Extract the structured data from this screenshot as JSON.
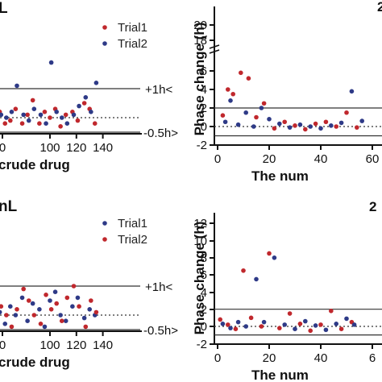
{
  "chart_data": [
    {
      "type": "scatter",
      "panel": "top-left",
      "title_fragment": "L",
      "xlabel": "crude drug",
      "x_ticks": [
        "0",
        "100",
        "120",
        "140"
      ],
      "reference_labels": [
        "+1h<",
        "-0.5h>"
      ],
      "legend": [
        "Trial1",
        "Trial2"
      ],
      "colors": {
        "Trial1": "#c0282d",
        "Trial2": "#2e3a87"
      },
      "series": [
        {
          "name": "Trial1",
          "x": [
            62,
            66,
            70,
            74,
            79,
            83,
            87,
            92,
            96,
            100,
            104,
            108,
            112,
            117,
            121,
            126,
            130,
            134
          ],
          "y": [
            0.2,
            -0.2,
            -0.1,
            0.3,
            -0.2,
            0.1,
            0.6,
            -0.2,
            0.2,
            0.0,
            0.3,
            -0.3,
            0.1,
            0.2,
            -0.1,
            0.5,
            0.3,
            -0.2
          ]
        },
        {
          "name": "Trial2",
          "x": [
            63,
            67,
            71,
            75,
            80,
            84,
            88,
            93,
            97,
            101,
            105,
            109,
            113,
            118,
            122,
            127,
            131,
            135
          ],
          "y": [
            0.1,
            0.0,
            0.2,
            1.1,
            0.1,
            -0.1,
            0.3,
            0.1,
            -0.2,
            1.9,
            0.2,
            0.0,
            -0.2,
            0.1,
            0.4,
            0.7,
            0.2,
            1.2
          ]
        }
      ]
    },
    {
      "type": "scatter",
      "panel": "top-right",
      "ylabel": "Phase change (h)",
      "xlabel": "The num",
      "y_ticks": [
        "-2",
        "0",
        "2",
        "4",
        "6",
        "18",
        "20"
      ],
      "x_ticks": [
        "0",
        "20",
        "40",
        "60"
      ],
      "series": [
        {
          "name": "Trial1",
          "x": [
            2,
            4,
            6,
            9,
            12,
            15,
            18,
            22,
            26,
            30,
            34,
            38,
            42,
            46,
            50,
            54
          ],
          "y": [
            1.2,
            4.0,
            3.5,
            5.8,
            5.2,
            1.0,
            2.5,
            -0.2,
            0.5,
            0.1,
            -0.3,
            0.3,
            0.5,
            0.0,
            1.5,
            -0.1
          ]
        },
        {
          "name": "Trial2",
          "x": [
            3,
            5,
            8,
            11,
            14,
            17,
            20,
            24,
            28,
            32,
            36,
            40,
            44,
            48,
            52,
            56
          ],
          "y": [
            0.5,
            2.8,
            0.2,
            1.5,
            0.0,
            2.0,
            0.8,
            0.3,
            -0.1,
            0.2,
            0.0,
            -0.2,
            0.1,
            0.4,
            3.8,
            0.6
          ]
        }
      ]
    },
    {
      "type": "scatter",
      "panel": "bottom-left",
      "title_fragment": "nL",
      "xlabel": "crude drug",
      "x_ticks": [
        "0",
        "100",
        "120",
        "140"
      ],
      "reference_labels": [
        "+1h<",
        "-0.5h>"
      ],
      "legend": [
        "Trial1",
        "Trial2"
      ],
      "colors": {
        "Trial1": "#2e3a87",
        "Trial2": "#c0282d"
      },
      "series": [
        {
          "name": "Trial1",
          "x": [
            62,
            66,
            70,
            74,
            79,
            83,
            87,
            92,
            96,
            100,
            104,
            108,
            112,
            117,
            121,
            126,
            130,
            134
          ],
          "y": [
            0.1,
            -0.3,
            0.3,
            0.0,
            0.6,
            -0.2,
            0.4,
            0.2,
            -0.4,
            0.5,
            0.8,
            0.0,
            -0.2,
            0.3,
            0.6,
            -0.1,
            0.2,
            0.0
          ]
        },
        {
          "name": "Trial2",
          "x": [
            63,
            67,
            71,
            75,
            80,
            84,
            88,
            93,
            97,
            101,
            105,
            109,
            113,
            118,
            122,
            127,
            131,
            135
          ],
          "y": [
            0.3,
            0.0,
            -0.4,
            0.2,
            0.9,
            0.5,
            0.0,
            -0.3,
            0.7,
            0.2,
            0.4,
            -0.2,
            0.6,
            1.0,
            0.3,
            -0.4,
            0.5,
            0.1
          ]
        }
      ]
    },
    {
      "type": "scatter",
      "panel": "bottom-right",
      "ylabel": "Phase change (h)",
      "xlabel": "The num",
      "y_ticks": [
        "-2",
        "0",
        "2",
        "4",
        "6",
        "8",
        "10",
        "12"
      ],
      "x_ticks": [
        "0",
        "20",
        "40",
        "6"
      ],
      "series": [
        {
          "name": "Trial1",
          "x": [
            1,
            4,
            7,
            10,
            13,
            17,
            20,
            24,
            28,
            32,
            36,
            40,
            44,
            48,
            52
          ],
          "y": [
            0.8,
            0.2,
            -0.3,
            6.5,
            1.0,
            0.0,
            8.5,
            -0.2,
            1.5,
            0.3,
            -0.5,
            0.2,
            1.8,
            -0.3,
            0.5
          ]
        },
        {
          "name": "Trial2",
          "x": [
            2,
            5,
            8,
            11,
            15,
            18,
            22,
            26,
            30,
            34,
            38,
            42,
            46,
            50,
            53
          ],
          "y": [
            0.3,
            -0.2,
            0.5,
            0.0,
            5.5,
            0.5,
            8.0,
            0.2,
            -0.3,
            0.6,
            0.1,
            -0.4,
            0.3,
            0.9,
            0.2
          ]
        }
      ]
    }
  ],
  "panel_label": "2"
}
